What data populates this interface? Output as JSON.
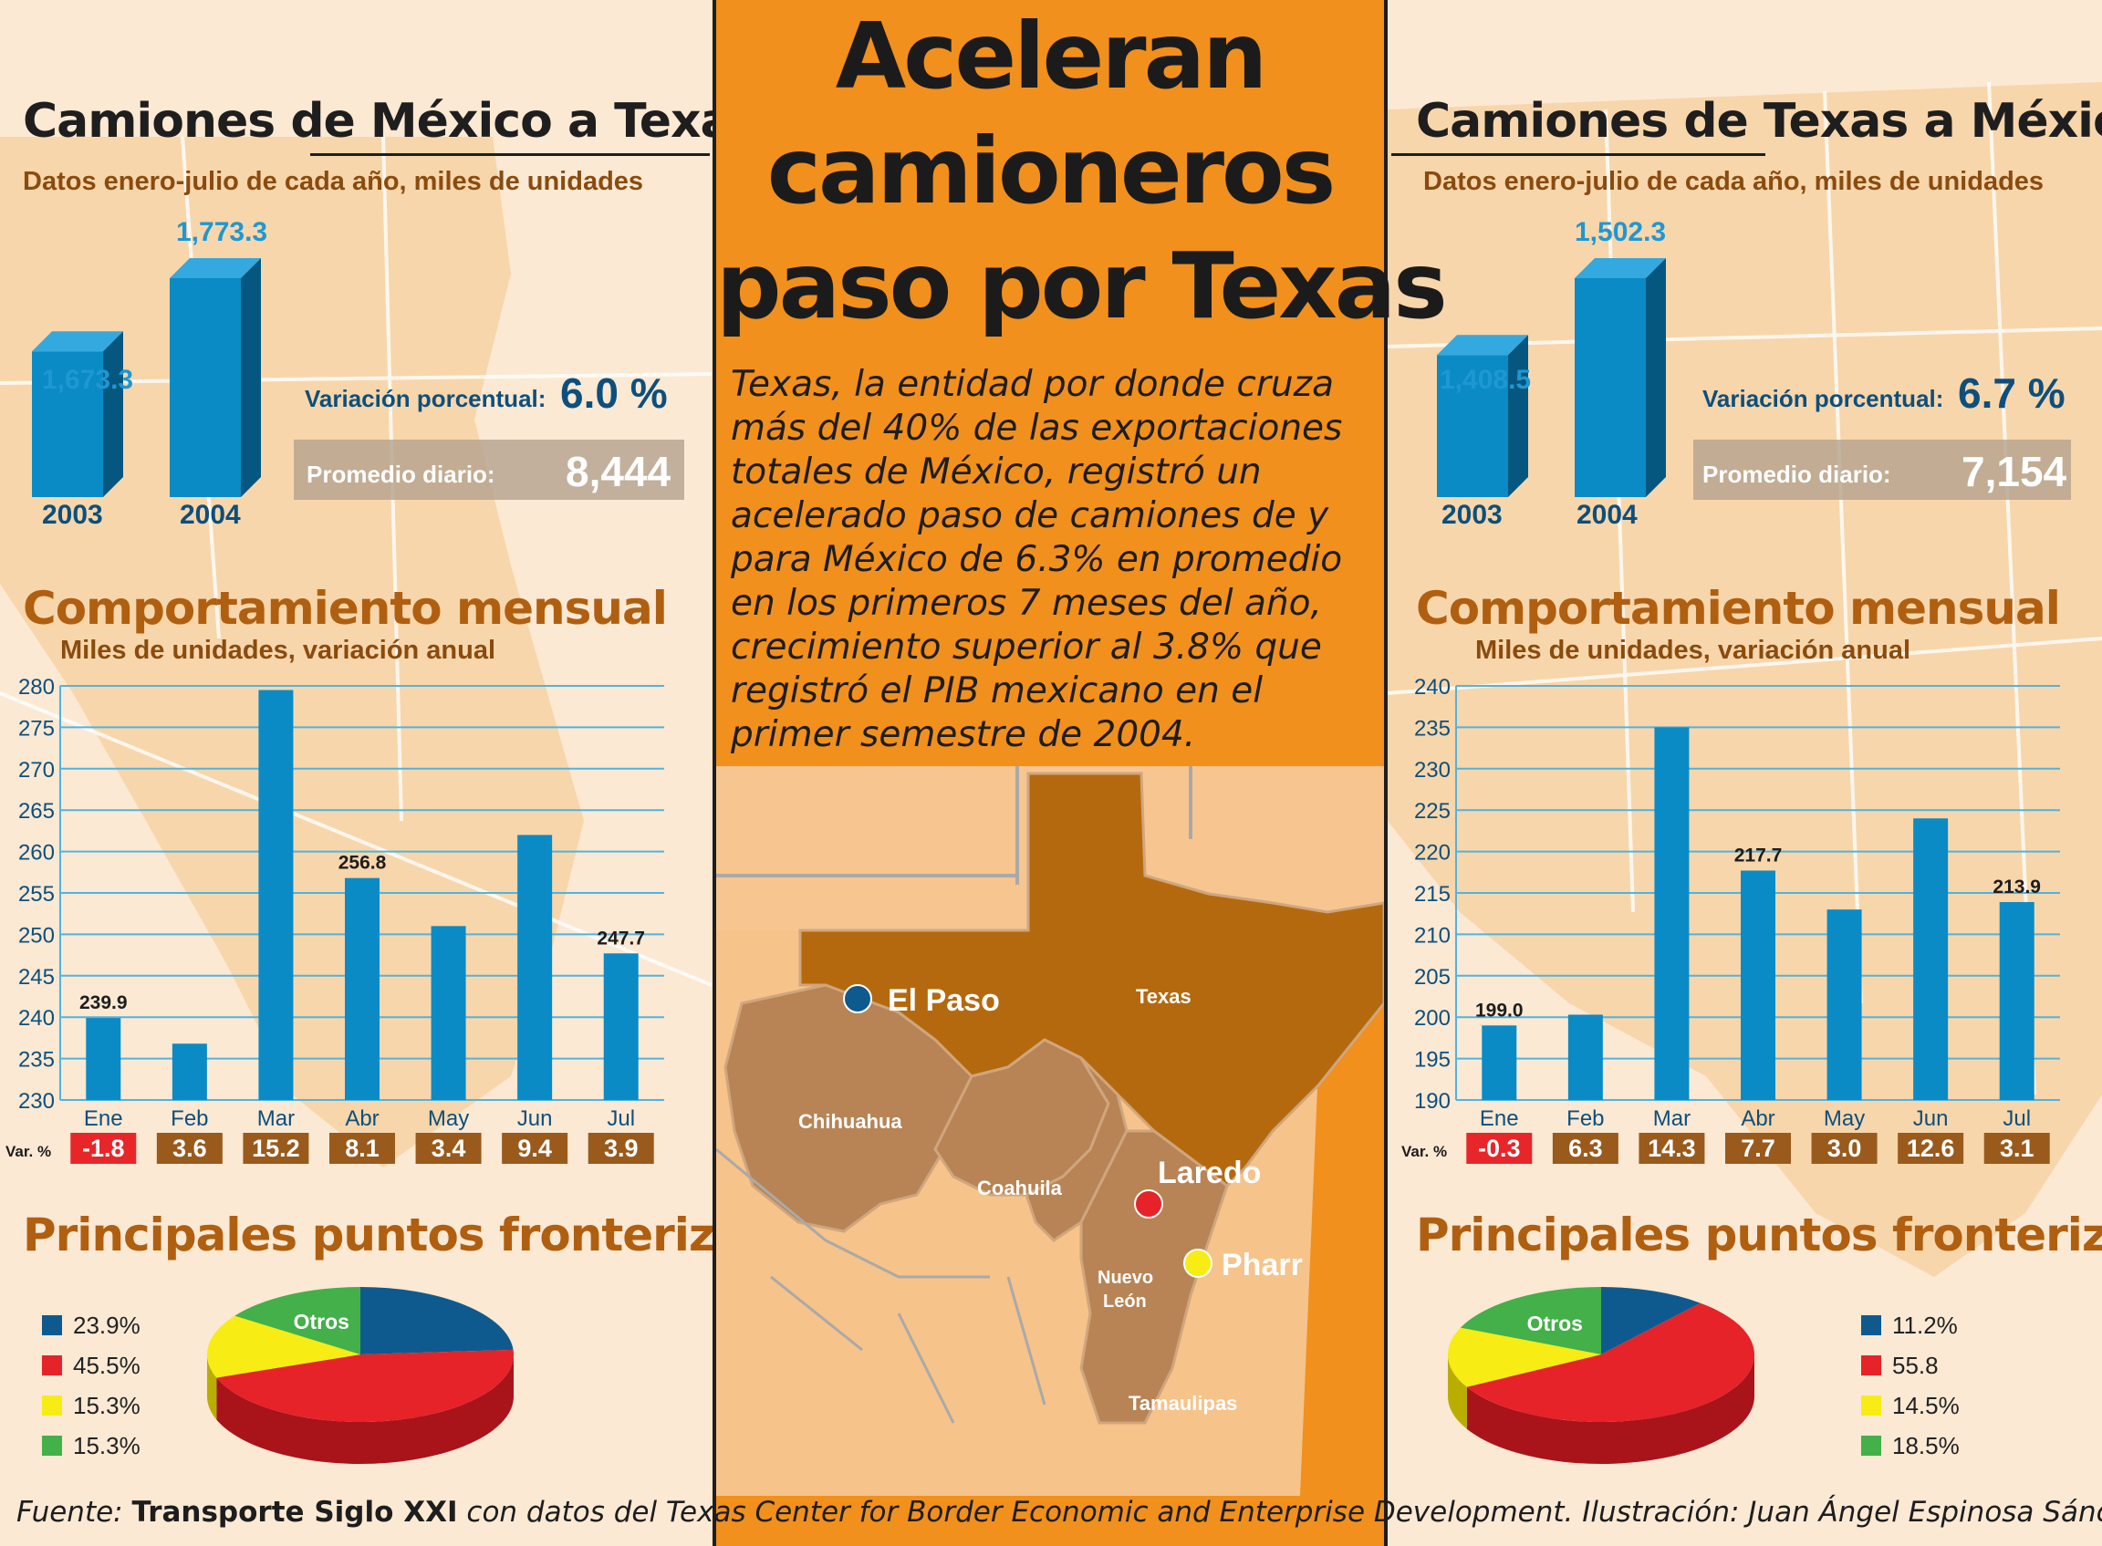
{
  "headline": [
    "Aceleran",
    "camioneros",
    "paso por Texas"
  ],
  "body_lines": [
    "Texas, la entidad por donde cruza",
    "más del 40% de las exportaciones",
    "totales de México, registró un",
    "acelerado paso de camiones de y",
    "para México de 6.3% en promedio",
    "en los primeros 7 meses del año,",
    "crecimiento superior al 3.8% que",
    "registró el PIB mexicano en el",
    "primer semestre de 2004."
  ],
  "source": {
    "prefix": "Fuente: ",
    "publication": "Transporte Siglo XXI",
    "suffix": " con datos del Texas Center for Border Economic and Enterprise Development. Ilustración: Juan Ángel Espinosa Sánchez."
  },
  "map_labels": {
    "texas": "Texas",
    "chihuahua": "Chihuahua",
    "coahuila": "Coahuila",
    "nuevo_leon_1": "Nuevo",
    "nuevo_leon_2": "León",
    "tamaulipas": "Tamaulipas",
    "el_paso": "El Paso",
    "laredo": "Laredo",
    "pharr": "Pharr"
  },
  "colors": {
    "bar_blue": "#0a8bc5",
    "dark_blue": "#0d4f7c",
    "neg_red": "#e8262a",
    "var_brown": "#9a5a1c",
    "pie_blue": "#0e5a8e",
    "pie_red": "#e52329",
    "pie_yellow": "#f7ec13",
    "pie_green": "#43b049",
    "center_orange": "#f1901c",
    "texas_brown": "#b5690f",
    "mx_state_brown": "#b88455"
  },
  "panels": {
    "left": {
      "title": "Camiones de México a Texas",
      "subtitle": "Datos enero-julio de cada año, miles de unidades",
      "variation_label": "Variación porcentual:",
      "variation_value": "6.0 %",
      "avg_label": "Promedio diario:",
      "avg_value": "8,444",
      "monthly_title": "Comportamiento mensual",
      "monthly_subtitle": "Miles de unidades, variación anual",
      "border_title": "Principales puntos fronterizos",
      "var_label": "Var. %"
    },
    "right": {
      "title": "Camiones de Texas a México",
      "subtitle": "Datos enero-julio de cada año, miles de unidades",
      "variation_label": "Variación porcentual:",
      "variation_value": "6.7 %",
      "avg_label": "Promedio diario:",
      "avg_value": "7,154",
      "monthly_title": "Comportamiento mensual",
      "monthly_subtitle": "Miles de unidades, variación anual",
      "border_title": "Principales puntos fronterizos",
      "var_label": "Var. %"
    }
  },
  "chart_data": [
    {
      "id": "left_annual",
      "type": "bar",
      "categories": [
        "2003",
        "2004"
      ],
      "values": [
        1673.3,
        1773.3
      ],
      "value_labels": [
        "1,673.3",
        "1,773.3"
      ]
    },
    {
      "id": "left_monthly",
      "type": "bar",
      "categories": [
        "Ene",
        "Feb",
        "Mar",
        "Abr",
        "May",
        "Jun",
        "Jul"
      ],
      "values": [
        239.9,
        236.8,
        279.5,
        256.8,
        251.0,
        262.0,
        247.7
      ],
      "data_labels": [
        "239.9",
        "",
        "",
        "256.8",
        "",
        "",
        "247.7"
      ],
      "ylim": [
        230,
        280
      ],
      "yticks": [
        230,
        235,
        240,
        245,
        250,
        255,
        260,
        265,
        270,
        275,
        280
      ],
      "grid": true,
      "variation": [
        "-1.8",
        "3.6",
        "15.2",
        "8.1",
        "3.4",
        "9.4",
        "3.9"
      ]
    },
    {
      "id": "left_pie",
      "type": "pie",
      "slices": [
        {
          "name": "",
          "value": 23.9,
          "label": "23.9%",
          "color": "#0e5a8e"
        },
        {
          "name": "",
          "value": 45.5,
          "label": "45.5%",
          "color": "#e52329"
        },
        {
          "name": "",
          "value": 15.3,
          "label": "15.3%",
          "color": "#f7ec13"
        },
        {
          "name": "Otros",
          "value": 15.3,
          "label": "15.3%",
          "color": "#43b049"
        }
      ]
    },
    {
      "id": "right_annual",
      "type": "bar",
      "categories": [
        "2003",
        "2004"
      ],
      "values": [
        1408.5,
        1502.3
      ],
      "value_labels": [
        "1,408.5",
        "1,502.3"
      ]
    },
    {
      "id": "right_monthly",
      "type": "bar",
      "categories": [
        "Ene",
        "Feb",
        "Mar",
        "Abr",
        "May",
        "Jun",
        "Jul"
      ],
      "values": [
        199.0,
        200.3,
        235.0,
        217.7,
        213.0,
        224.0,
        213.9
      ],
      "data_labels": [
        "199.0",
        "",
        "",
        "217.7",
        "",
        "",
        "213.9"
      ],
      "ylim": [
        190,
        240
      ],
      "yticks": [
        190,
        195,
        200,
        205,
        210,
        215,
        220,
        225,
        230,
        235,
        240
      ],
      "grid": true,
      "variation": [
        "-0.3",
        "6.3",
        "14.3",
        "7.7",
        "3.0",
        "12.6",
        "3.1"
      ]
    },
    {
      "id": "right_pie",
      "type": "pie",
      "slices": [
        {
          "name": "",
          "value": 11.2,
          "label": "11.2%",
          "color": "#0e5a8e"
        },
        {
          "name": "",
          "value": 55.8,
          "label": "55.8",
          "color": "#e52329"
        },
        {
          "name": "",
          "value": 14.5,
          "label": "14.5%",
          "color": "#f7ec13"
        },
        {
          "name": "Otros",
          "value": 18.5,
          "label": "18.5%",
          "color": "#43b049"
        }
      ]
    }
  ]
}
